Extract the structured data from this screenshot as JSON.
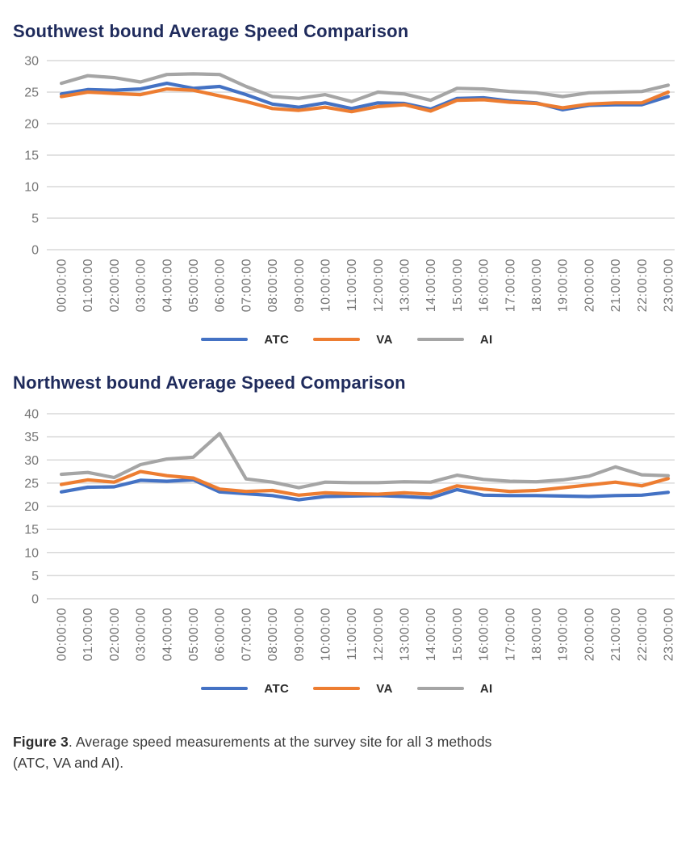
{
  "colors": {
    "atc": "#4472C4",
    "va": "#ED7D31",
    "ai": "#A5A5A5",
    "title_text": "#1F2B5C",
    "axis_text": "#767676",
    "gridline": "#D9D9D9",
    "legend_text": "#2b2b2b",
    "caption_text": "#3a3a3a"
  },
  "caption": {
    "label": "Figure 3",
    "text": ". Average speed measurements at the survey site for all 3 methods",
    "line2": "(ATC, VA and AI)."
  },
  "chart_data": [
    {
      "type": "line",
      "name": "southwest",
      "title": "Southwest bound Average Speed Comparison",
      "xlabel": "",
      "ylabel": "",
      "ylim": [
        0,
        30
      ],
      "ytick_step": 5,
      "grid": true,
      "legend_position": "bottom",
      "x_tick_rotation": 90,
      "x": [
        "00:00:00",
        "01:00:00",
        "02:00:00",
        "03:00:00",
        "04:00:00",
        "05:00:00",
        "06:00:00",
        "07:00:00",
        "08:00:00",
        "09:00:00",
        "10:00:00",
        "11:00:00",
        "12:00:00",
        "13:00:00",
        "14:00:00",
        "15:00:00",
        "16:00:00",
        "17:00:00",
        "18:00:00",
        "19:00:00",
        "20:00:00",
        "21:00:00",
        "22:00:00",
        "23:00:00"
      ],
      "series": [
        {
          "name": "ATC",
          "color": "#4472C4",
          "values": [
            24.7,
            25.4,
            25.3,
            25.5,
            26.4,
            25.6,
            25.9,
            24.6,
            23.1,
            22.6,
            23.3,
            22.4,
            23.3,
            23.2,
            22.3,
            24.0,
            24.1,
            23.6,
            23.3,
            22.2,
            22.9,
            23.0,
            23.0,
            24.3
          ]
        },
        {
          "name": "VA",
          "color": "#ED7D31",
          "values": [
            24.3,
            25.0,
            24.8,
            24.6,
            25.5,
            25.3,
            24.4,
            23.5,
            22.4,
            22.1,
            22.6,
            21.9,
            22.7,
            23.0,
            22.0,
            23.7,
            23.8,
            23.4,
            23.2,
            22.5,
            23.1,
            23.3,
            23.3,
            25.0
          ]
        },
        {
          "name": "AI",
          "color": "#A5A5A5",
          "values": [
            26.4,
            27.6,
            27.3,
            26.6,
            27.8,
            27.9,
            27.8,
            25.9,
            24.3,
            24.0,
            24.6,
            23.5,
            25.0,
            24.7,
            23.7,
            25.6,
            25.5,
            25.1,
            24.9,
            24.3,
            24.9,
            25.0,
            25.1,
            26.1
          ]
        }
      ]
    },
    {
      "type": "line",
      "name": "northwest",
      "title": "Northwest bound Average Speed Comparison",
      "xlabel": "",
      "ylabel": "",
      "ylim": [
        0,
        40
      ],
      "ytick_step": 5,
      "grid": true,
      "legend_position": "bottom",
      "x_tick_rotation": 90,
      "x": [
        "00:00:00",
        "01:00:00",
        "02:00:00",
        "03:00:00",
        "04:00:00",
        "05:00:00",
        "06:00:00",
        "07:00:00",
        "08:00:00",
        "09:00:00",
        "10:00:00",
        "11:00:00",
        "12:00:00",
        "13:00:00",
        "14:00:00",
        "15:00:00",
        "16:00:00",
        "17:00:00",
        "18:00:00",
        "19:00:00",
        "20:00:00",
        "21:00:00",
        "22:00:00",
        "23:00:00"
      ],
      "series": [
        {
          "name": "ATC",
          "color": "#4472C4",
          "values": [
            23.1,
            24.1,
            24.2,
            25.6,
            25.4,
            25.7,
            23.1,
            22.7,
            22.3,
            21.4,
            22.1,
            22.2,
            22.3,
            22.1,
            21.8,
            23.6,
            22.4,
            22.3,
            22.3,
            22.2,
            22.1,
            22.3,
            22.4,
            23.0
          ]
        },
        {
          "name": "VA",
          "color": "#ED7D31",
          "values": [
            24.7,
            25.7,
            25.2,
            27.5,
            26.6,
            26.1,
            23.7,
            23.2,
            23.4,
            22.4,
            22.9,
            22.7,
            22.6,
            22.9,
            22.6,
            24.4,
            23.7,
            23.2,
            23.4,
            24.0,
            24.6,
            25.2,
            24.4,
            26.0
          ]
        },
        {
          "name": "AI",
          "color": "#A5A5A5",
          "values": [
            26.9,
            27.3,
            26.2,
            29.0,
            30.2,
            30.6,
            35.7,
            25.9,
            25.2,
            24.0,
            25.2,
            25.1,
            25.1,
            25.3,
            25.2,
            26.7,
            25.8,
            25.4,
            25.3,
            25.7,
            26.5,
            28.5,
            26.8,
            26.6
          ]
        }
      ]
    }
  ]
}
